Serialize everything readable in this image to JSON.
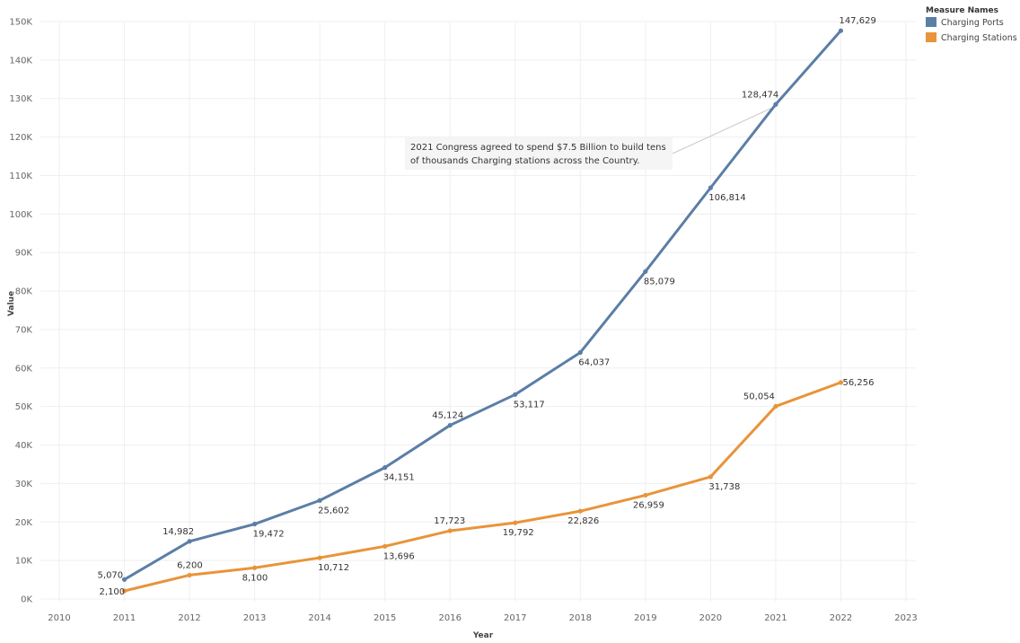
{
  "chart_data": {
    "type": "line",
    "x": [
      2011,
      2012,
      2013,
      2014,
      2015,
      2016,
      2017,
      2018,
      2019,
      2020,
      2021,
      2022
    ],
    "series": [
      {
        "name": "Charging Ports",
        "color": "#5b7ea6",
        "values": [
          5070,
          14982,
          19472,
          25602,
          34151,
          45124,
          53117,
          64037,
          85079,
          106814,
          128474,
          147629
        ],
        "labels": [
          "5,070",
          "14,982",
          "19,472",
          "25,602",
          "34,151",
          "45,124",
          "53,117",
          "64,037",
          "85,079",
          "106,814",
          "128,474",
          "147,629"
        ]
      },
      {
        "name": "Charging Stations",
        "color": "#e8943a",
        "values": [
          2100,
          6200,
          8100,
          10712,
          13696,
          17723,
          19792,
          22826,
          26959,
          31738,
          50054,
          56256
        ],
        "labels": [
          "2,100",
          "6,200",
          "8,100",
          "10,712",
          "13,696",
          "17,723",
          "19,792",
          "22,826",
          "26,959",
          "31,738",
          "50,054",
          "56,256"
        ]
      }
    ],
    "xlabel": "Year",
    "ylabel": "Value",
    "xlim": [
      2010,
      2023
    ],
    "xticks": [
      "2010",
      "2011",
      "2012",
      "2013",
      "2014",
      "2015",
      "2016",
      "2017",
      "2018",
      "2019",
      "2020",
      "2021",
      "2022",
      "2023"
    ],
    "ylim": [
      0,
      150000
    ],
    "yticks": [
      "0K",
      "10K",
      "20K",
      "30K",
      "40K",
      "50K",
      "60K",
      "70K",
      "80K",
      "90K",
      "100K",
      "110K",
      "120K",
      "130K",
      "140K",
      "150K"
    ],
    "grid": true,
    "legend": {
      "title": "Measure Names",
      "placement": "top-right"
    },
    "annotation": {
      "lines": [
        "2021 Congress agreed to spend $7.5 Billion to build tens",
        "of thousands Charging stations across the Country."
      ],
      "target_series": "Charging Ports",
      "target_x": 2021
    }
  }
}
